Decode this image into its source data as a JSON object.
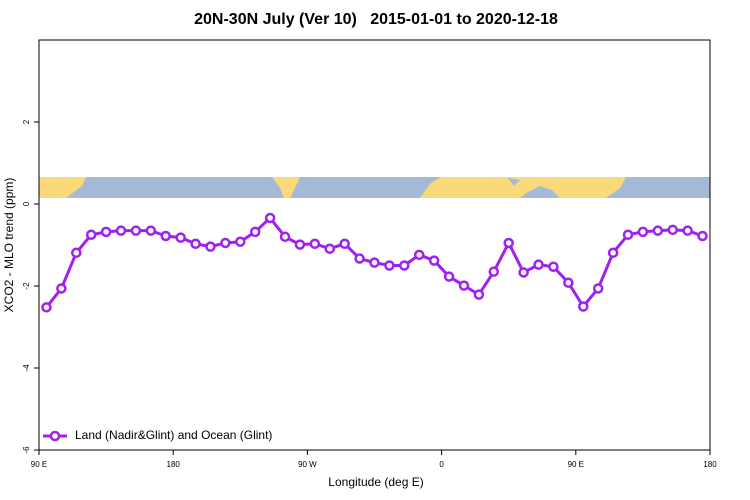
{
  "chart_data": {
    "type": "line",
    "title": "20N-30N July (Ver 10)   2015-01-01 to 2020-12-18",
    "xlabel": "Longitude (deg E)",
    "ylabel": "XCO2 - MLO trend (ppm)",
    "x": [
      95,
      105,
      115,
      125,
      135,
      145,
      155,
      165,
      175,
      185,
      195,
      205,
      215,
      225,
      235,
      245,
      255,
      265,
      275,
      285,
      295,
      305,
      315,
      325,
      335,
      345,
      355,
      365,
      375,
      385,
      395,
      405,
      415,
      425,
      435,
      445,
      455,
      465,
      475,
      485,
      495,
      505,
      515,
      525,
      535
    ],
    "series": [
      {
        "name": "Land (Nadir&Glint) and Ocean (Glint)",
        "color": "#a020f0",
        "values": [
          -2.52,
          -2.06,
          -1.19,
          -0.75,
          -0.68,
          -0.65,
          -0.65,
          -0.65,
          -0.78,
          -0.82,
          -0.97,
          -1.04,
          -0.95,
          -0.92,
          -0.68,
          -0.34,
          -0.8,
          -0.99,
          -0.97,
          -1.09,
          -0.97,
          -1.33,
          -1.43,
          -1.5,
          -1.5,
          -1.24,
          -1.38,
          -1.77,
          -1.99,
          -2.21,
          -1.65,
          -0.95,
          -1.67,
          -1.48,
          -1.53,
          -1.92,
          -2.5,
          -2.06,
          -1.19,
          -0.75,
          -0.68,
          -0.65,
          -0.63,
          -0.65,
          -0.78
        ]
      }
    ],
    "xlim": [
      90,
      540
    ],
    "xticks": [
      {
        "value": 90,
        "label": "90 E"
      },
      180,
      {
        "value": 270,
        "label": "90 W"
      },
      {
        "value": 360,
        "label": "0"
      },
      {
        "value": 450,
        "label": "90 E"
      },
      {
        "value": 540,
        "label": "180"
      }
    ],
    "ylim": [
      -6,
      4
    ],
    "yticks": [
      -6,
      -4,
      -2,
      0,
      2
    ],
    "legend": "bottom-left"
  }
}
